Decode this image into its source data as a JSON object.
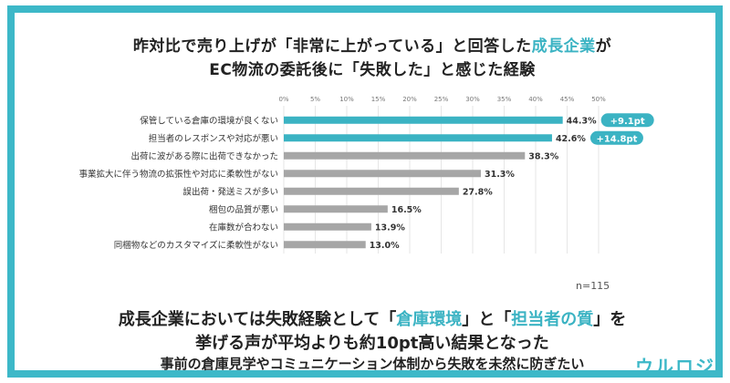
{
  "title": {
    "line1_prefix": "昨対比で売り上げが「非常に上がっている」と回答した",
    "line1_accent": "成長企業",
    "line1_suffix": "が",
    "line2": "EC物流の委託後に「失敗した」と感じた経験"
  },
  "sample_size": "n=115",
  "summary": {
    "line1_a": "成長企業においては失敗経験として「",
    "line1_accent1": "倉庫環境",
    "line1_b": "」と「",
    "line1_accent2": "担当者の質",
    "line1_c": "」を",
    "line2": "挙げる声が平均よりも約10pt高い結果となった",
    "line3": "事前の倉庫見学やコミュニケーション体制から失敗を未然に防ぎたい"
  },
  "brand": "ウルロジ",
  "colors": {
    "frame": "#3db8c8",
    "highlight_bar": "#3bb3c3",
    "gray_bar": "#a6a6a6",
    "badge": "#3bb3c3"
  },
  "chart_data": {
    "type": "bar",
    "orientation": "horizontal",
    "categories": [
      "保管している倉庫の環境が良くない",
      "担当者のレスポンスや対応が悪い",
      "出荷に波がある際に出荷できなかった",
      "事業拡大に伴う物流の拡張性や対応に柔軟性がない",
      "誤出荷・発送ミスが多い",
      "梱包の品質が悪い",
      "在庫数が合わない",
      "同梱物などのカスタマイズに柔軟性がない"
    ],
    "values": [
      44.3,
      42.6,
      38.3,
      31.3,
      27.8,
      16.5,
      13.9,
      13.0
    ],
    "value_labels": [
      "44.3%",
      "42.6%",
      "38.3%",
      "31.3%",
      "27.8%",
      "16.5%",
      "13.9%",
      "13.0%"
    ],
    "highlighted": [
      true,
      true,
      false,
      false,
      false,
      false,
      false,
      false
    ],
    "badges": [
      "+9.1pt",
      "+14.8pt",
      "",
      "",
      "",
      "",
      "",
      ""
    ],
    "xlim": [
      0,
      50
    ],
    "xticks": [
      "0%",
      "5%",
      "10%",
      "15%",
      "20%",
      "25%",
      "30%",
      "35%",
      "40%",
      "45%",
      "50%"
    ],
    "grid": true
  }
}
